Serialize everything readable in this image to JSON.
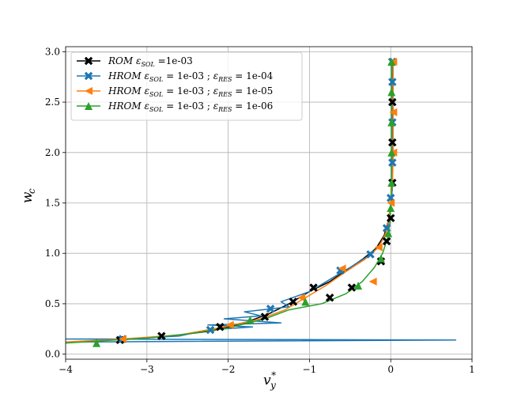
{
  "chart_data": {
    "type": "line",
    "xlabel": "v_y^*",
    "ylabel": "w_c",
    "xlim": [
      -4,
      1
    ],
    "ylim": [
      -0.05,
      3.05
    ],
    "x_ticks": [
      -4,
      -3,
      -2,
      -1,
      0,
      1
    ],
    "x_tick_labels": [
      "−4",
      "−3",
      "−2",
      "−1",
      "0",
      "1"
    ],
    "y_ticks": [
      0.0,
      0.5,
      1.0,
      1.5,
      2.0,
      2.5,
      3.0
    ],
    "y_tick_labels": [
      "0.0",
      "0.5",
      "1.0",
      "1.5",
      "2.0",
      "2.5",
      "3.0"
    ],
    "grid": true,
    "legend_position": "top-left",
    "series": [
      {
        "name": "ROM ε_SOL =1e-03",
        "legend_parts": {
          "model": "ROM",
          "eps_sol_value": " =1e-03",
          "eps_res_value": ""
        },
        "color": "#000000",
        "marker": "x-filled",
        "points": [
          [
            -3.35,
            0.14
          ],
          [
            -3.0,
            0.16
          ],
          [
            -2.6,
            0.19
          ],
          [
            -2.2,
            0.23
          ],
          [
            -1.8,
            0.31
          ],
          [
            -1.5,
            0.4
          ],
          [
            -1.25,
            0.5
          ],
          [
            -1.0,
            0.62
          ],
          [
            -0.75,
            0.72
          ],
          [
            -0.55,
            0.83
          ],
          [
            -0.35,
            0.94
          ],
          [
            -0.18,
            1.05
          ],
          [
            -0.08,
            1.18
          ],
          [
            -0.03,
            1.32
          ],
          [
            0.0,
            1.48
          ],
          [
            0.02,
            1.65
          ],
          [
            0.02,
            1.85
          ],
          [
            0.02,
            2.1
          ],
          [
            0.02,
            2.35
          ],
          [
            0.02,
            2.6
          ],
          [
            0.02,
            2.9
          ]
        ],
        "markers": [
          [
            -3.33,
            0.14
          ],
          [
            -2.82,
            0.18
          ],
          [
            -2.1,
            0.27
          ],
          [
            -1.55,
            0.37
          ],
          [
            -1.2,
            0.52
          ],
          [
            -0.95,
            0.66
          ],
          [
            -0.75,
            0.56
          ],
          [
            -0.48,
            0.66
          ],
          [
            -0.12,
            0.92
          ],
          [
            -0.05,
            1.12
          ],
          [
            0.0,
            1.35
          ],
          [
            0.02,
            1.7
          ],
          [
            0.02,
            2.1
          ],
          [
            0.02,
            2.5
          ],
          [
            0.02,
            2.9
          ]
        ]
      },
      {
        "name": "HROM ε_SOL = 1e-03 ; ε_RES = 1e-04",
        "legend_parts": {
          "model": "HROM",
          "eps_sol_value": " = 1e-03 ; ",
          "eps_res_value": " = 1e-04"
        },
        "color": "#1f77b4",
        "marker": "x-filled",
        "points": [
          [
            -4.0,
            0.12
          ],
          [
            0.8,
            0.14
          ],
          [
            -4.0,
            0.15
          ],
          [
            -3.3,
            0.15
          ],
          [
            -2.6,
            0.18
          ],
          [
            -2.25,
            0.24
          ],
          [
            -1.7,
            0.27
          ],
          [
            -2.25,
            0.29
          ],
          [
            -1.35,
            0.31
          ],
          [
            -2.05,
            0.35
          ],
          [
            -1.6,
            0.38
          ],
          [
            -1.8,
            0.42
          ],
          [
            -1.25,
            0.47
          ],
          [
            -1.35,
            0.52
          ],
          [
            -1.0,
            0.62
          ],
          [
            -0.75,
            0.74
          ],
          [
            -0.5,
            0.86
          ],
          [
            -0.3,
            0.96
          ],
          [
            -0.15,
            1.06
          ],
          [
            -0.07,
            1.18
          ],
          [
            -0.02,
            1.32
          ],
          [
            0.0,
            1.48
          ],
          [
            0.02,
            1.65
          ],
          [
            0.02,
            1.85
          ],
          [
            0.02,
            2.1
          ],
          [
            0.02,
            2.35
          ],
          [
            0.02,
            2.6
          ],
          [
            0.02,
            2.9
          ]
        ],
        "markers": [
          [
            -3.3,
            0.15
          ],
          [
            -2.22,
            0.24
          ],
          [
            -1.48,
            0.45
          ],
          [
            -0.62,
            0.83
          ],
          [
            -0.25,
            0.99
          ],
          [
            -0.05,
            1.25
          ],
          [
            0.0,
            1.55
          ],
          [
            0.02,
            1.9
          ],
          [
            0.02,
            2.3
          ],
          [
            0.02,
            2.7
          ],
          [
            0.02,
            2.9
          ]
        ]
      },
      {
        "name": "HROM ε_SOL = 1e-03 ; ε_RES = 1e-05",
        "legend_parts": {
          "model": "HROM",
          "eps_sol_value": " = 1e-03 ; ",
          "eps_res_value": " = 1e-05"
        },
        "color": "#ff7f0e",
        "marker": "triangle-left",
        "points": [
          [
            -4.0,
            0.12
          ],
          [
            -3.3,
            0.15
          ],
          [
            -2.6,
            0.19
          ],
          [
            -2.05,
            0.27
          ],
          [
            -1.6,
            0.35
          ],
          [
            -1.3,
            0.44
          ],
          [
            -1.05,
            0.56
          ],
          [
            -0.8,
            0.68
          ],
          [
            -0.55,
            0.82
          ],
          [
            -0.32,
            0.94
          ],
          [
            -0.15,
            1.06
          ],
          [
            -0.06,
            1.2
          ],
          [
            -0.02,
            1.35
          ],
          [
            0.0,
            1.5
          ],
          [
            0.02,
            1.7
          ],
          [
            0.03,
            1.95
          ],
          [
            0.03,
            2.2
          ],
          [
            0.03,
            2.5
          ],
          [
            0.03,
            2.75
          ],
          [
            0.03,
            2.9
          ]
        ],
        "markers": [
          [
            -3.3,
            0.15
          ],
          [
            -1.98,
            0.29
          ],
          [
            -1.1,
            0.56
          ],
          [
            -0.6,
            0.85
          ],
          [
            -0.22,
            0.72
          ],
          [
            -0.15,
            1.06
          ],
          [
            0.0,
            1.5
          ],
          [
            0.03,
            2.0
          ],
          [
            0.03,
            2.4
          ],
          [
            0.03,
            2.9
          ]
        ]
      },
      {
        "name": "HROM ε_SOL = 1e-03 ; ε_RES = 1e-06",
        "legend_parts": {
          "model": "HROM",
          "eps_sol_value": " = 1e-03 ; ",
          "eps_res_value": " = 1e-06"
        },
        "color": "#2ca02c",
        "marker": "triangle-up",
        "points": [
          [
            -4.0,
            0.11
          ],
          [
            -3.6,
            0.13
          ],
          [
            -3.0,
            0.16
          ],
          [
            -2.5,
            0.2
          ],
          [
            -2.0,
            0.26
          ],
          [
            -1.55,
            0.35
          ],
          [
            -1.25,
            0.44
          ],
          [
            -0.85,
            0.5
          ],
          [
            -0.55,
            0.6
          ],
          [
            -0.35,
            0.72
          ],
          [
            -0.2,
            0.86
          ],
          [
            -0.1,
            1.0
          ],
          [
            -0.04,
            1.15
          ],
          [
            -0.01,
            1.3
          ],
          [
            0.0,
            1.48
          ],
          [
            0.01,
            1.68
          ],
          [
            0.01,
            1.95
          ],
          [
            0.01,
            2.2
          ],
          [
            0.01,
            2.5
          ],
          [
            0.01,
            2.75
          ],
          [
            0.01,
            2.9
          ]
        ],
        "markers": [
          [
            -3.62,
            0.11
          ],
          [
            -1.73,
            0.34
          ],
          [
            -1.05,
            0.52
          ],
          [
            -0.4,
            0.68
          ],
          [
            -0.12,
            0.95
          ],
          [
            -0.03,
            1.2
          ],
          [
            0.0,
            1.45
          ],
          [
            0.01,
            1.7
          ],
          [
            0.01,
            2.0
          ],
          [
            0.01,
            2.3
          ],
          [
            0.01,
            2.6
          ],
          [
            0.01,
            2.9
          ]
        ]
      }
    ]
  }
}
